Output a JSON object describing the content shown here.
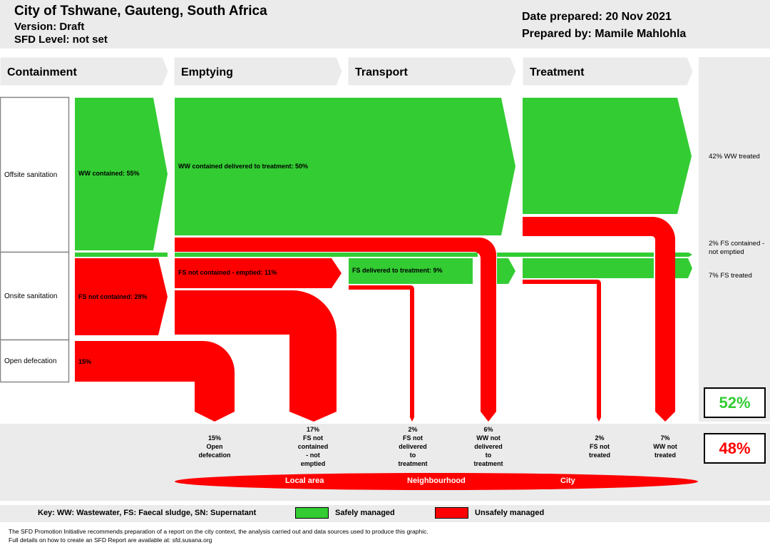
{
  "header": {
    "title": "City of Tshwane, Gauteng, South Africa",
    "version": "Version: Draft",
    "sfd_level": "SFD Level: not set",
    "date_prepared": "Date prepared: 20 Nov 2021",
    "prepared_by": "Prepared by: Mamile Mahlohla"
  },
  "stages": [
    "Containment",
    "Emptying",
    "Transport",
    "Treatment"
  ],
  "rows": [
    "Offsite sanitation",
    "Onsite sanitation",
    "Open defecation"
  ],
  "flows": {
    "ww_contained": "WW contained: 55%",
    "ww_delivered": "WW contained delivered to treatment: 50%",
    "fs_not_contained": "FS not contained: 28%",
    "fs_not_contained_emptied": "FS not contained - emptied: 11%",
    "fs_delivered": "FS delivered to treatment: 9%",
    "open_def": "15%"
  },
  "outcomes": {
    "ww_treated": "42% WW treated",
    "fs_contained_not_emptied": "2% FS contained - not emptied",
    "fs_treated": "7% FS treated"
  },
  "bottom": {
    "open_defecation": [
      "15%",
      "Open",
      "defecation"
    ],
    "fs_not_contained_not_emptied": [
      "17%",
      "FS not",
      "contained",
      "- not",
      "emptied"
    ],
    "fs_not_delivered": [
      "2%",
      "FS not",
      "delivered",
      "to",
      "treatment"
    ],
    "ww_not_delivered": [
      "6%",
      "WW not",
      "delivered",
      "to",
      "treatment"
    ],
    "fs_not_treated": [
      "2%",
      "FS not",
      "treated"
    ],
    "ww_not_treated": [
      "7%",
      "WW not",
      "treated"
    ]
  },
  "areas": [
    "Local area",
    "Neighbourhood",
    "City"
  ],
  "safe_pct": "52%",
  "unsafe_pct": "48%",
  "key": {
    "text": "Key: WW: Wastewater, FS: Faecal sludge, SN: Supernatant",
    "safe": "Safely managed",
    "unsafe": "Unsafely managed"
  },
  "footer": {
    "line1": "The SFD Promotion Initiative recommends preparation of a report on the city context, the analysis carried out and data sources used to produce this graphic.",
    "line2": "Full details on how to create an SFD Report are available at: sfd.susana.org"
  },
  "colors": {
    "safe": "#33cc33",
    "unsafe": "#ff0000",
    "panel": "#ebebeb"
  }
}
